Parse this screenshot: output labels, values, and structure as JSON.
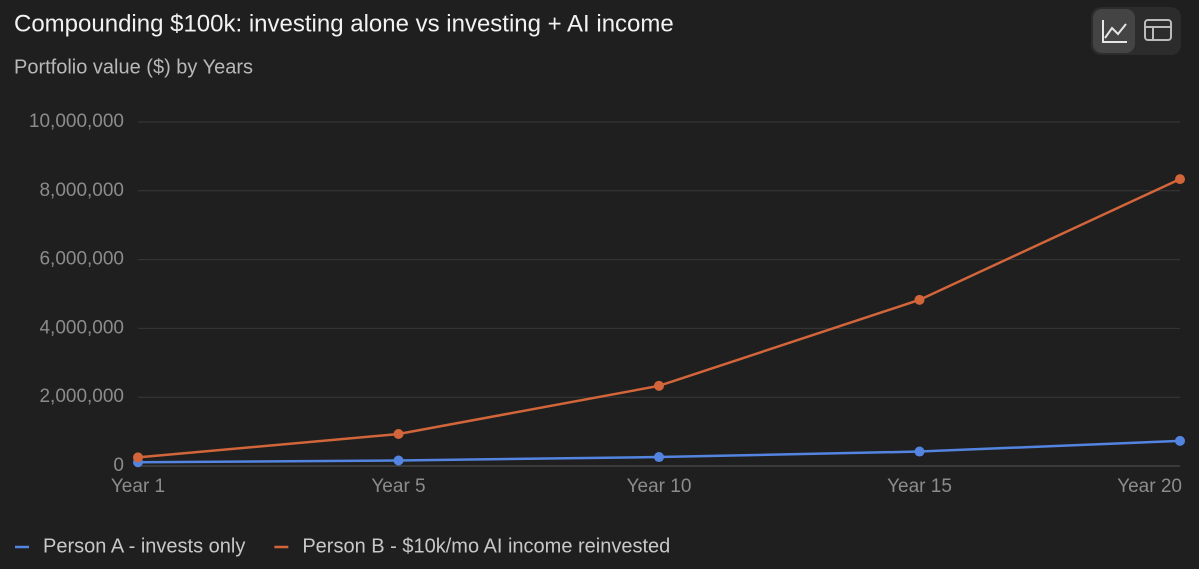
{
  "chart_data": {
    "type": "line",
    "title": "Compounding $100k: investing alone vs investing + AI income",
    "subtitle": "Portfolio value ($) by Years",
    "categories": [
      "Year 1",
      "Year 5",
      "Year 10",
      "Year 15",
      "Year 20"
    ],
    "series": [
      {
        "name": "Person A - invests only",
        "color": "#5284e0",
        "values": [
          110000,
          160000,
          260000,
          420000,
          730000
        ]
      },
      {
        "name": "Person B - $10k/mo AI income reinvested",
        "color": "#d2653a",
        "values": [
          250000,
          930000,
          2330000,
          4830000,
          8340000
        ]
      }
    ],
    "ylim": [
      0,
      10000000
    ],
    "yticks": [
      0,
      {
        "value": 2000000,
        "label": "2,000,000"
      },
      {
        "value": 4000000,
        "label": "4,000,000"
      },
      {
        "value": 6000000,
        "label": "6,000,000"
      },
      {
        "value": 8000000,
        "label": "8,000,000"
      },
      {
        "value": 10000000,
        "label": "10,000,000"
      }
    ],
    "grid": true,
    "legend": "bottom"
  }
}
